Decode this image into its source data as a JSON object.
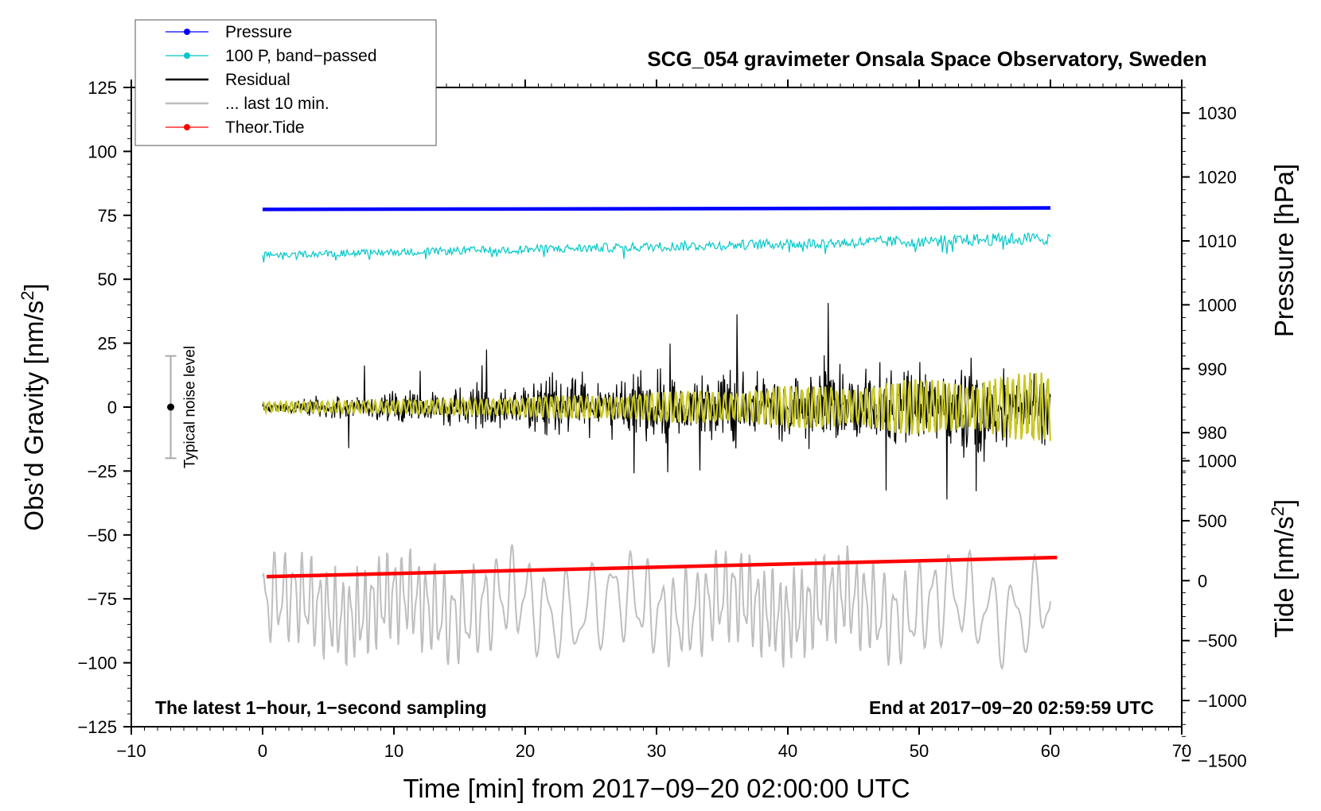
{
  "chart_data": {
    "type": "line",
    "title": "SCG_054 gravimeter Onsala Space Observatory, Sweden",
    "xlabel": "Time [min] from 2017−09−20 02:00:00 UTC",
    "ylabel_left": "Obs’d Gravity [nm/s",
    "ylabel_left_sup": "2",
    "ylabel_left_close": "]",
    "ylabel_pressure": "Pressure [hPa]",
    "ylabel_tide": "Tide [nm/s",
    "ylabel_tide_sup": "2",
    "ylabel_tide_close": "]",
    "xlim": [
      -10,
      70
    ],
    "ylim": [
      -125,
      125
    ],
    "x_ticks": [
      -10,
      0,
      10,
      20,
      30,
      40,
      50,
      60,
      70
    ],
    "x_tick_labels": [
      "−10",
      "0",
      "10",
      "20",
      "30",
      "40",
      "50",
      "60",
      "70"
    ],
    "y_ticks": [
      125,
      100,
      75,
      50,
      25,
      0,
      -25,
      -50,
      -75,
      -100,
      -125
    ],
    "y_tick_labels": [
      "125",
      "100",
      "75",
      "50",
      "25",
      "0",
      "−25",
      "−50",
      "−75",
      "−100",
      "−125"
    ],
    "pressure_ticks": [
      1030,
      1020,
      1010,
      1000,
      990,
      980
    ],
    "pressure_tick_labels": [
      "1030",
      "1020",
      "1010",
      "1000",
      "990",
      "980"
    ],
    "pressure_axis": {
      "at_1030": 115,
      "hpa_per_unit": 0.4
    },
    "tide_ticks": [
      1000,
      500,
      0,
      -500,
      -1000,
      -1500
    ],
    "tide_tick_labels": [
      "1000",
      "500",
      "0",
      "−500",
      "−1000",
      "−1500"
    ],
    "tide_axis": {
      "at_1000": -21,
      "nms2_per_unit": 0.04688
    },
    "legend": [
      {
        "label": "Pressure",
        "color": "#0000ff",
        "marker": true
      },
      {
        "label": "100 P, band−passed",
        "color": "#00c8c8",
        "marker": true
      },
      {
        "label": "Residual",
        "color": "#000000",
        "marker": false
      },
      {
        "label": "... last 10 min.",
        "color": "#bebebe",
        "marker": false
      },
      {
        "label": "Theor.Tide",
        "color": "#ff0000",
        "marker": true
      }
    ],
    "annotations": {
      "left": "The latest 1−hour, 1−second sampling",
      "right": "End at 2017−09−20 02:59:59 UTC"
    },
    "noise_bar": {
      "label": "Typical noise level",
      "x": -7,
      "low": -20,
      "high": 20,
      "center": 0
    },
    "series": [
      {
        "name": "Pressure",
        "color": "#0000ff",
        "x_start": 0,
        "x_end": 60,
        "y_start": 77.3,
        "y_end": 77.9
      },
      {
        "name": "100 P, band−passed",
        "color": "#00c8c8",
        "x_start": 0,
        "x_end": 60,
        "y_start": 59.5,
        "y_end": 66.0,
        "amplitude_start": 1.2,
        "amplitude_end": 2.5
      },
      {
        "name": "Residual",
        "color": "#000000",
        "x_start": 0,
        "x_end": 60,
        "center": 0,
        "amplitude_start": 3,
        "amplitude_end": 25
      },
      {
        "name": "Smoothed residual",
        "color": "#c8c828",
        "x_start": 0,
        "x_end": 60,
        "center": 0,
        "amplitude_start": 2,
        "amplitude_end": 14
      },
      {
        "name": "... last 10 min.",
        "color": "#bebebe",
        "x_start": 0,
        "x_end": 60,
        "center": -78,
        "amplitude": 18
      },
      {
        "name": "Theor.Tide",
        "color": "#ff0000",
        "x_start": 0.3,
        "x_end": 60.5,
        "y_start": -66.3,
        "y_end": -58.8
      }
    ]
  }
}
